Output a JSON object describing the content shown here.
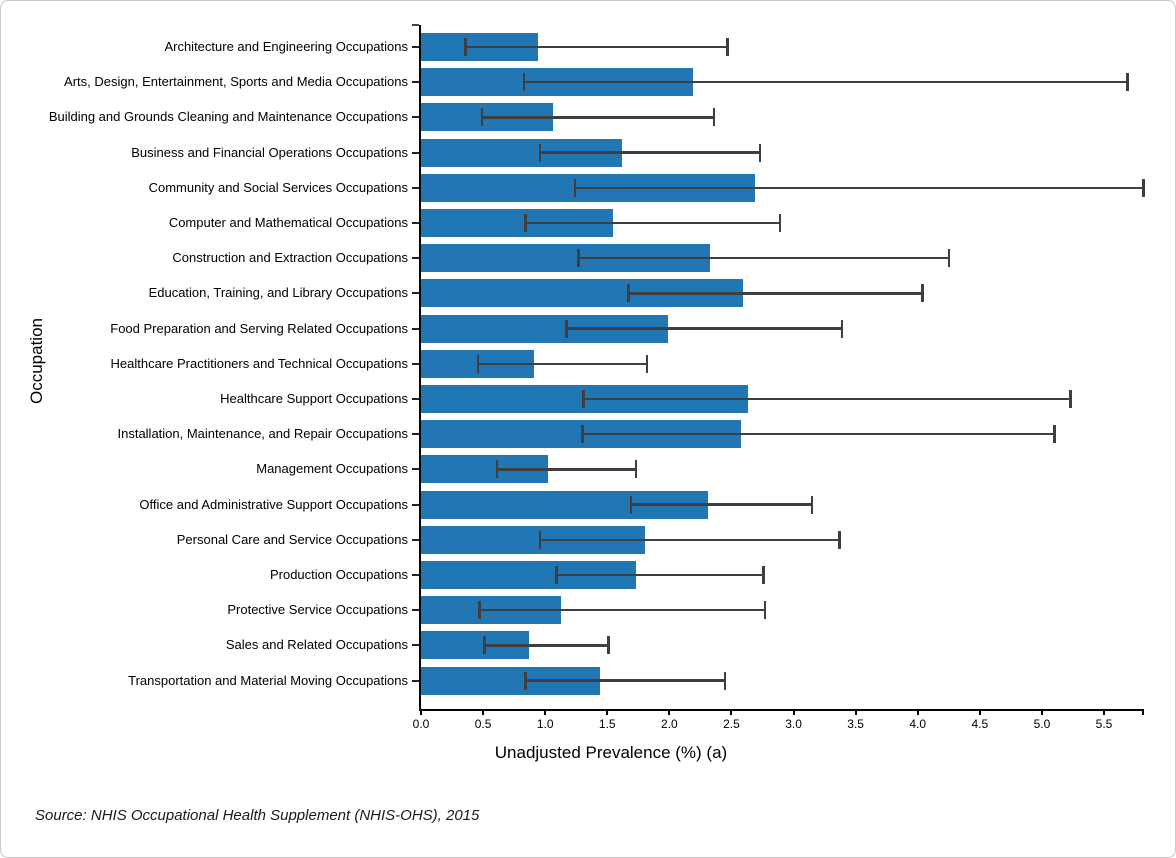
{
  "figure": {
    "background": "#ffffff",
    "border_color": "#c9c9c9"
  },
  "chart_data": {
    "type": "bar",
    "orientation": "horizontal",
    "xlabel": "Unadjusted Prevalence (%) (a)",
    "ylabel": "Occupation",
    "xlim": [
      0,
      5.83
    ],
    "grid": false,
    "legend": "none",
    "bar_color": "#2077b4",
    "error_bar_color": "#3f3f3f",
    "x_tick_labels": [
      "0.0",
      "0.5",
      "1.0",
      "1.5",
      "2.0",
      "2.5",
      "3.0",
      "3.5",
      "4.0",
      "4.5",
      "5.0",
      "5.5"
    ],
    "categories": [
      "Architecture and Engineering Occupations",
      "Arts, Design, Entertainment, Sports and Media Occupations",
      "Building and Grounds Cleaning and Maintenance Occupations",
      "Business and Financial Operations Occupations",
      "Community and Social Services Occupations",
      "Computer and Mathematical Occupations",
      "Construction and Extraction Occupations",
      "Education, Training, and Library Occupations",
      "Food Preparation and Serving Related Occupations",
      "Healthcare Practitioners and Technical Occupations",
      "Healthcare Support Occupations",
      "Installation, Maintenance, and Repair Occupations",
      "Management Occupations",
      "Office and Administrative Support Occupations",
      "Personal Care and Service Occupations",
      "Production Occupations",
      "Protective Service Occupations",
      "Sales and Related Occupations",
      "Transportation and Material Moving Occupations"
    ],
    "values": [
      0.94,
      2.19,
      1.06,
      1.62,
      2.69,
      1.55,
      2.33,
      2.59,
      1.99,
      0.91,
      2.63,
      2.58,
      1.02,
      2.31,
      1.8,
      1.73,
      1.13,
      0.87,
      1.44
    ],
    "ci_low": [
      0.35,
      0.82,
      0.48,
      0.95,
      1.23,
      0.83,
      1.26,
      1.66,
      1.16,
      0.45,
      1.3,
      1.29,
      0.6,
      1.68,
      0.95,
      1.08,
      0.46,
      0.5,
      0.83
    ],
    "ci_high": [
      2.48,
      5.7,
      2.37,
      2.74,
      5.83,
      2.9,
      4.26,
      4.05,
      3.4,
      1.83,
      5.24,
      5.11,
      1.74,
      3.16,
      3.38,
      2.77,
      2.78,
      1.52,
      2.46
    ]
  },
  "source_note": "Source: NHIS Occupational Health Supplement (NHIS-OHS), 2015"
}
